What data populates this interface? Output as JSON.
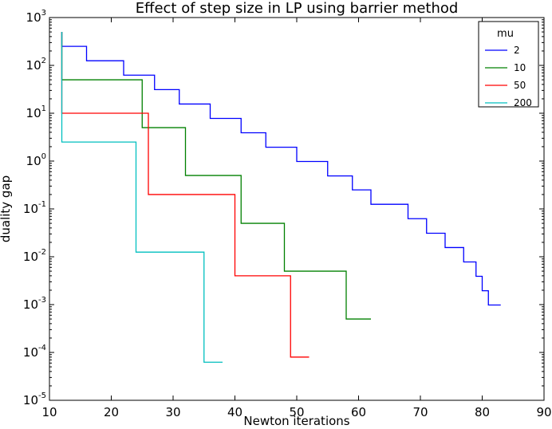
{
  "chart_data": {
    "type": "line",
    "drawstyle": "steps-post",
    "title": "Effect of step size in LP using barrier method",
    "xlabel": "Newton iterations",
    "ylabel": "duality gap",
    "xlim": [
      10,
      90
    ],
    "ylim": [
      1e-05,
      1000
    ],
    "yscale": "log",
    "grid": false,
    "xticks": [
      10,
      20,
      30,
      40,
      50,
      60,
      70,
      80,
      90
    ],
    "yticks": [
      {
        "value": 1e-05,
        "base": "10",
        "exp": "-5"
      },
      {
        "value": 0.0001,
        "base": "10",
        "exp": "-4"
      },
      {
        "value": 0.001,
        "base": "10",
        "exp": "-3"
      },
      {
        "value": 0.01,
        "base": "10",
        "exp": "-2"
      },
      {
        "value": 0.1,
        "base": "10",
        "exp": "-1"
      },
      {
        "value": 1,
        "base": "10",
        "exp": "0"
      },
      {
        "value": 10,
        "base": "10",
        "exp": "1"
      },
      {
        "value": 100,
        "base": "10",
        "exp": "2"
      },
      {
        "value": 1000,
        "base": "10",
        "exp": "3"
      }
    ],
    "legend": {
      "title": "mu",
      "position": "top-right"
    },
    "series": [
      {
        "name": "2",
        "color": "#0000ff",
        "x": [
          12,
          12,
          16,
          22,
          27,
          31,
          36,
          41,
          45,
          50,
          55,
          59,
          62,
          68,
          71,
          74,
          77,
          79,
          80,
          81,
          83
        ],
        "y": [
          500,
          250,
          125,
          62.5,
          31.2,
          15.6,
          7.8,
          3.9,
          1.95,
          0.98,
          0.49,
          0.25,
          0.125,
          0.0625,
          0.031,
          0.0156,
          0.0078,
          0.0039,
          0.00195,
          0.00098,
          0.00098
        ]
      },
      {
        "name": "10",
        "color": "#008000",
        "x": [
          12,
          12,
          25,
          32,
          41,
          48,
          58,
          62
        ],
        "y": [
          500,
          50,
          5,
          0.5,
          0.05,
          0.005,
          0.0005,
          0.0005
        ]
      },
      {
        "name": "50",
        "color": "#ff0000",
        "x": [
          12,
          12,
          26,
          40,
          49,
          52
        ],
        "y": [
          500,
          10,
          0.2,
          0.004,
          8e-05,
          8e-05
        ]
      },
      {
        "name": "200",
        "color": "#00bfbf",
        "x": [
          12,
          12,
          24,
          35,
          38
        ],
        "y": [
          500,
          2.5,
          0.0125,
          6.25e-05,
          6.25e-05
        ]
      }
    ]
  }
}
